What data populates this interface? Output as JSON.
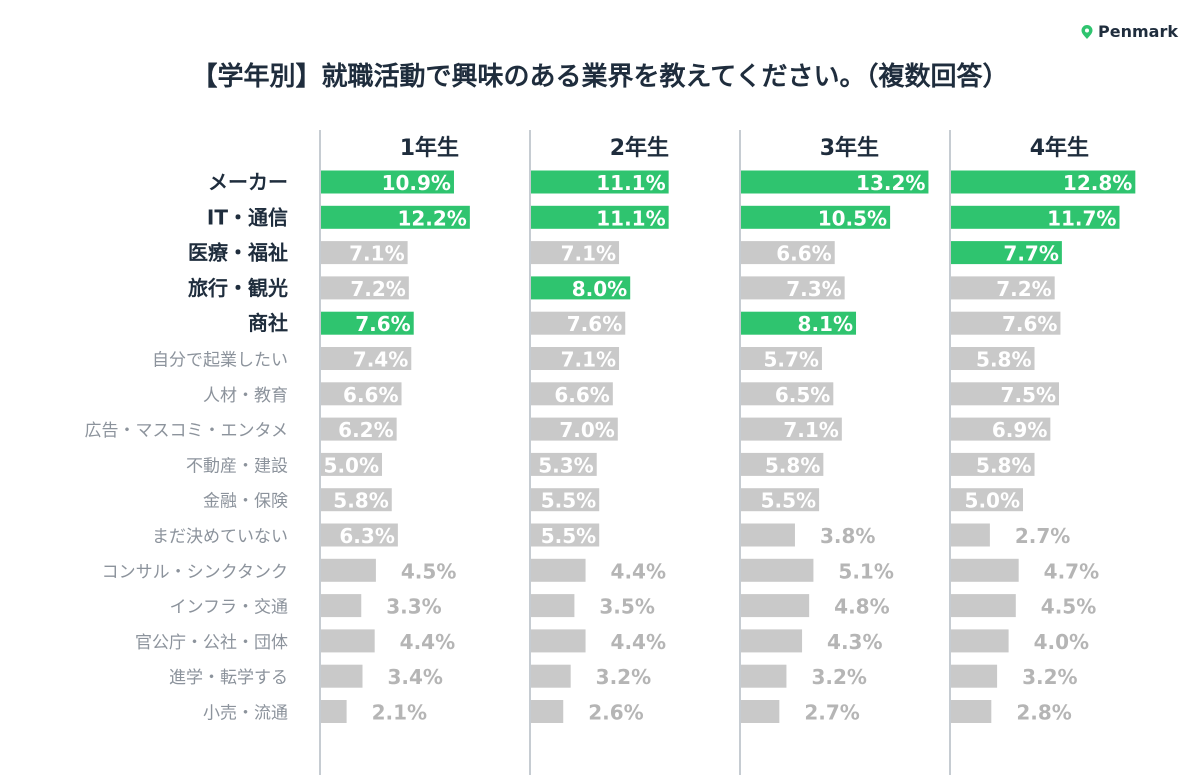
{
  "brand": "Penmark",
  "colors": {
    "highlight": "#2fc46f",
    "bar": "#c9c9c9",
    "text_dark": "#1f2d3d",
    "text_light": "#8c939c",
    "divider": "#8c9aa6"
  },
  "chart_data": {
    "type": "bar",
    "orientation": "horizontal",
    "title": "【学年別】就職活動で興味のある業界を教えてください。（複数回答）",
    "categories": [
      "メーカー",
      "IT・通信",
      "医療・福祉",
      "旅行・観光",
      "商社",
      "自分で起業したい",
      "人材・教育",
      "広告・マスコミ・エンタメ",
      "不動産・建設",
      "金融・保険",
      "まだ決めていない",
      "コンサル・シンクタンク",
      "インフラ・交通",
      "官公庁・公社・団体",
      "進学・転学する",
      "小売・流通"
    ],
    "unit": "%",
    "series": [
      {
        "name": "1年生",
        "values": [
          10.9,
          12.2,
          7.1,
          7.2,
          7.6,
          7.4,
          6.6,
          6.2,
          5.0,
          5.8,
          6.3,
          4.5,
          3.3,
          4.4,
          3.4,
          2.1
        ],
        "highlighted": [
          0,
          1,
          4
        ]
      },
      {
        "name": "2年生",
        "values": [
          11.1,
          11.1,
          7.1,
          8.0,
          7.6,
          7.1,
          6.6,
          7.0,
          5.3,
          5.5,
          5.5,
          4.4,
          3.5,
          4.4,
          3.2,
          2.6
        ],
        "highlighted": [
          0,
          1,
          3
        ]
      },
      {
        "name": "3年生",
        "values": [
          13.2,
          10.5,
          6.6,
          7.3,
          8.1,
          5.7,
          6.5,
          7.1,
          5.8,
          5.5,
          3.8,
          5.1,
          4.8,
          4.3,
          3.2,
          2.7
        ],
        "highlighted": [
          0,
          1,
          4
        ]
      },
      {
        "name": "4年生",
        "values": [
          12.8,
          11.7,
          7.7,
          7.2,
          7.6,
          5.8,
          7.5,
          6.9,
          5.8,
          5.0,
          2.7,
          4.7,
          4.5,
          4.0,
          3.2,
          2.8
        ],
        "highlighted": [
          0,
          1,
          2
        ]
      }
    ],
    "bold_categories": 5
  }
}
